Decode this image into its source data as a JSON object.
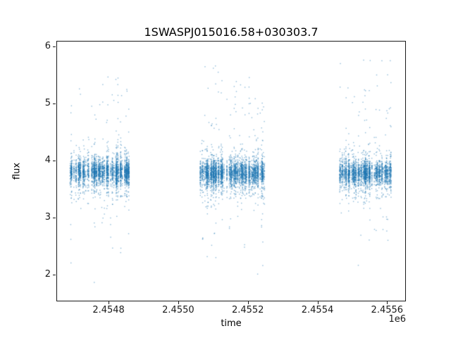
{
  "chart_data": {
    "type": "scatter",
    "title": "1SWASPJ015016.58+030303.7",
    "xlabel": "time",
    "ylabel": "flux",
    "x_offset_label": "1e6",
    "xlim": [
      2454650,
      2455650
    ],
    "ylim": [
      1.55,
      6.1
    ],
    "xticks": [
      2454800,
      2455000,
      2455200,
      2455400,
      2455600
    ],
    "xtick_labels": [
      "2.4548",
      "2.4550",
      "2.4552",
      "2.4554",
      "2.4556"
    ],
    "yticks": [
      2,
      3,
      4,
      5,
      6
    ],
    "ytick_labels": [
      "2",
      "3",
      "4",
      "5",
      "6"
    ],
    "grid": false,
    "legend": null,
    "background": "#ffffff",
    "marker_color": "#1f77b4",
    "marker_alpha": 0.5,
    "marker_size_px": 1.4,
    "series_description": "SuperWASP light curve: three dense observing seasons; baseline flux band ~3.6-4.0, nightly vertical streaks dipping to ~1.7 and sparse excursions up to ~5.8",
    "clusters": [
      {
        "x_min": 2454685,
        "x_max": 2454860,
        "nights": 85,
        "points_per_night": [
          18,
          60
        ],
        "base_flux": 3.82,
        "core_sigma": 0.1,
        "wide_sigma": 0.24,
        "low_min": 1.68,
        "high_max": 5.55,
        "dip_night_prob": 0.3
      },
      {
        "x_min": 2455060,
        "x_max": 2455245,
        "nights": 90,
        "points_per_night": [
          18,
          60
        ],
        "base_flux": 3.8,
        "core_sigma": 0.1,
        "wide_sigma": 0.24,
        "low_min": 1.7,
        "high_max": 5.8,
        "dip_night_prob": 0.3
      },
      {
        "x_min": 2455460,
        "x_max": 2455612,
        "nights": 75,
        "points_per_night": [
          16,
          55
        ],
        "base_flux": 3.8,
        "core_sigma": 0.1,
        "wide_sigma": 0.22,
        "low_min": 1.72,
        "high_max": 5.8,
        "dip_night_prob": 0.28
      }
    ]
  }
}
